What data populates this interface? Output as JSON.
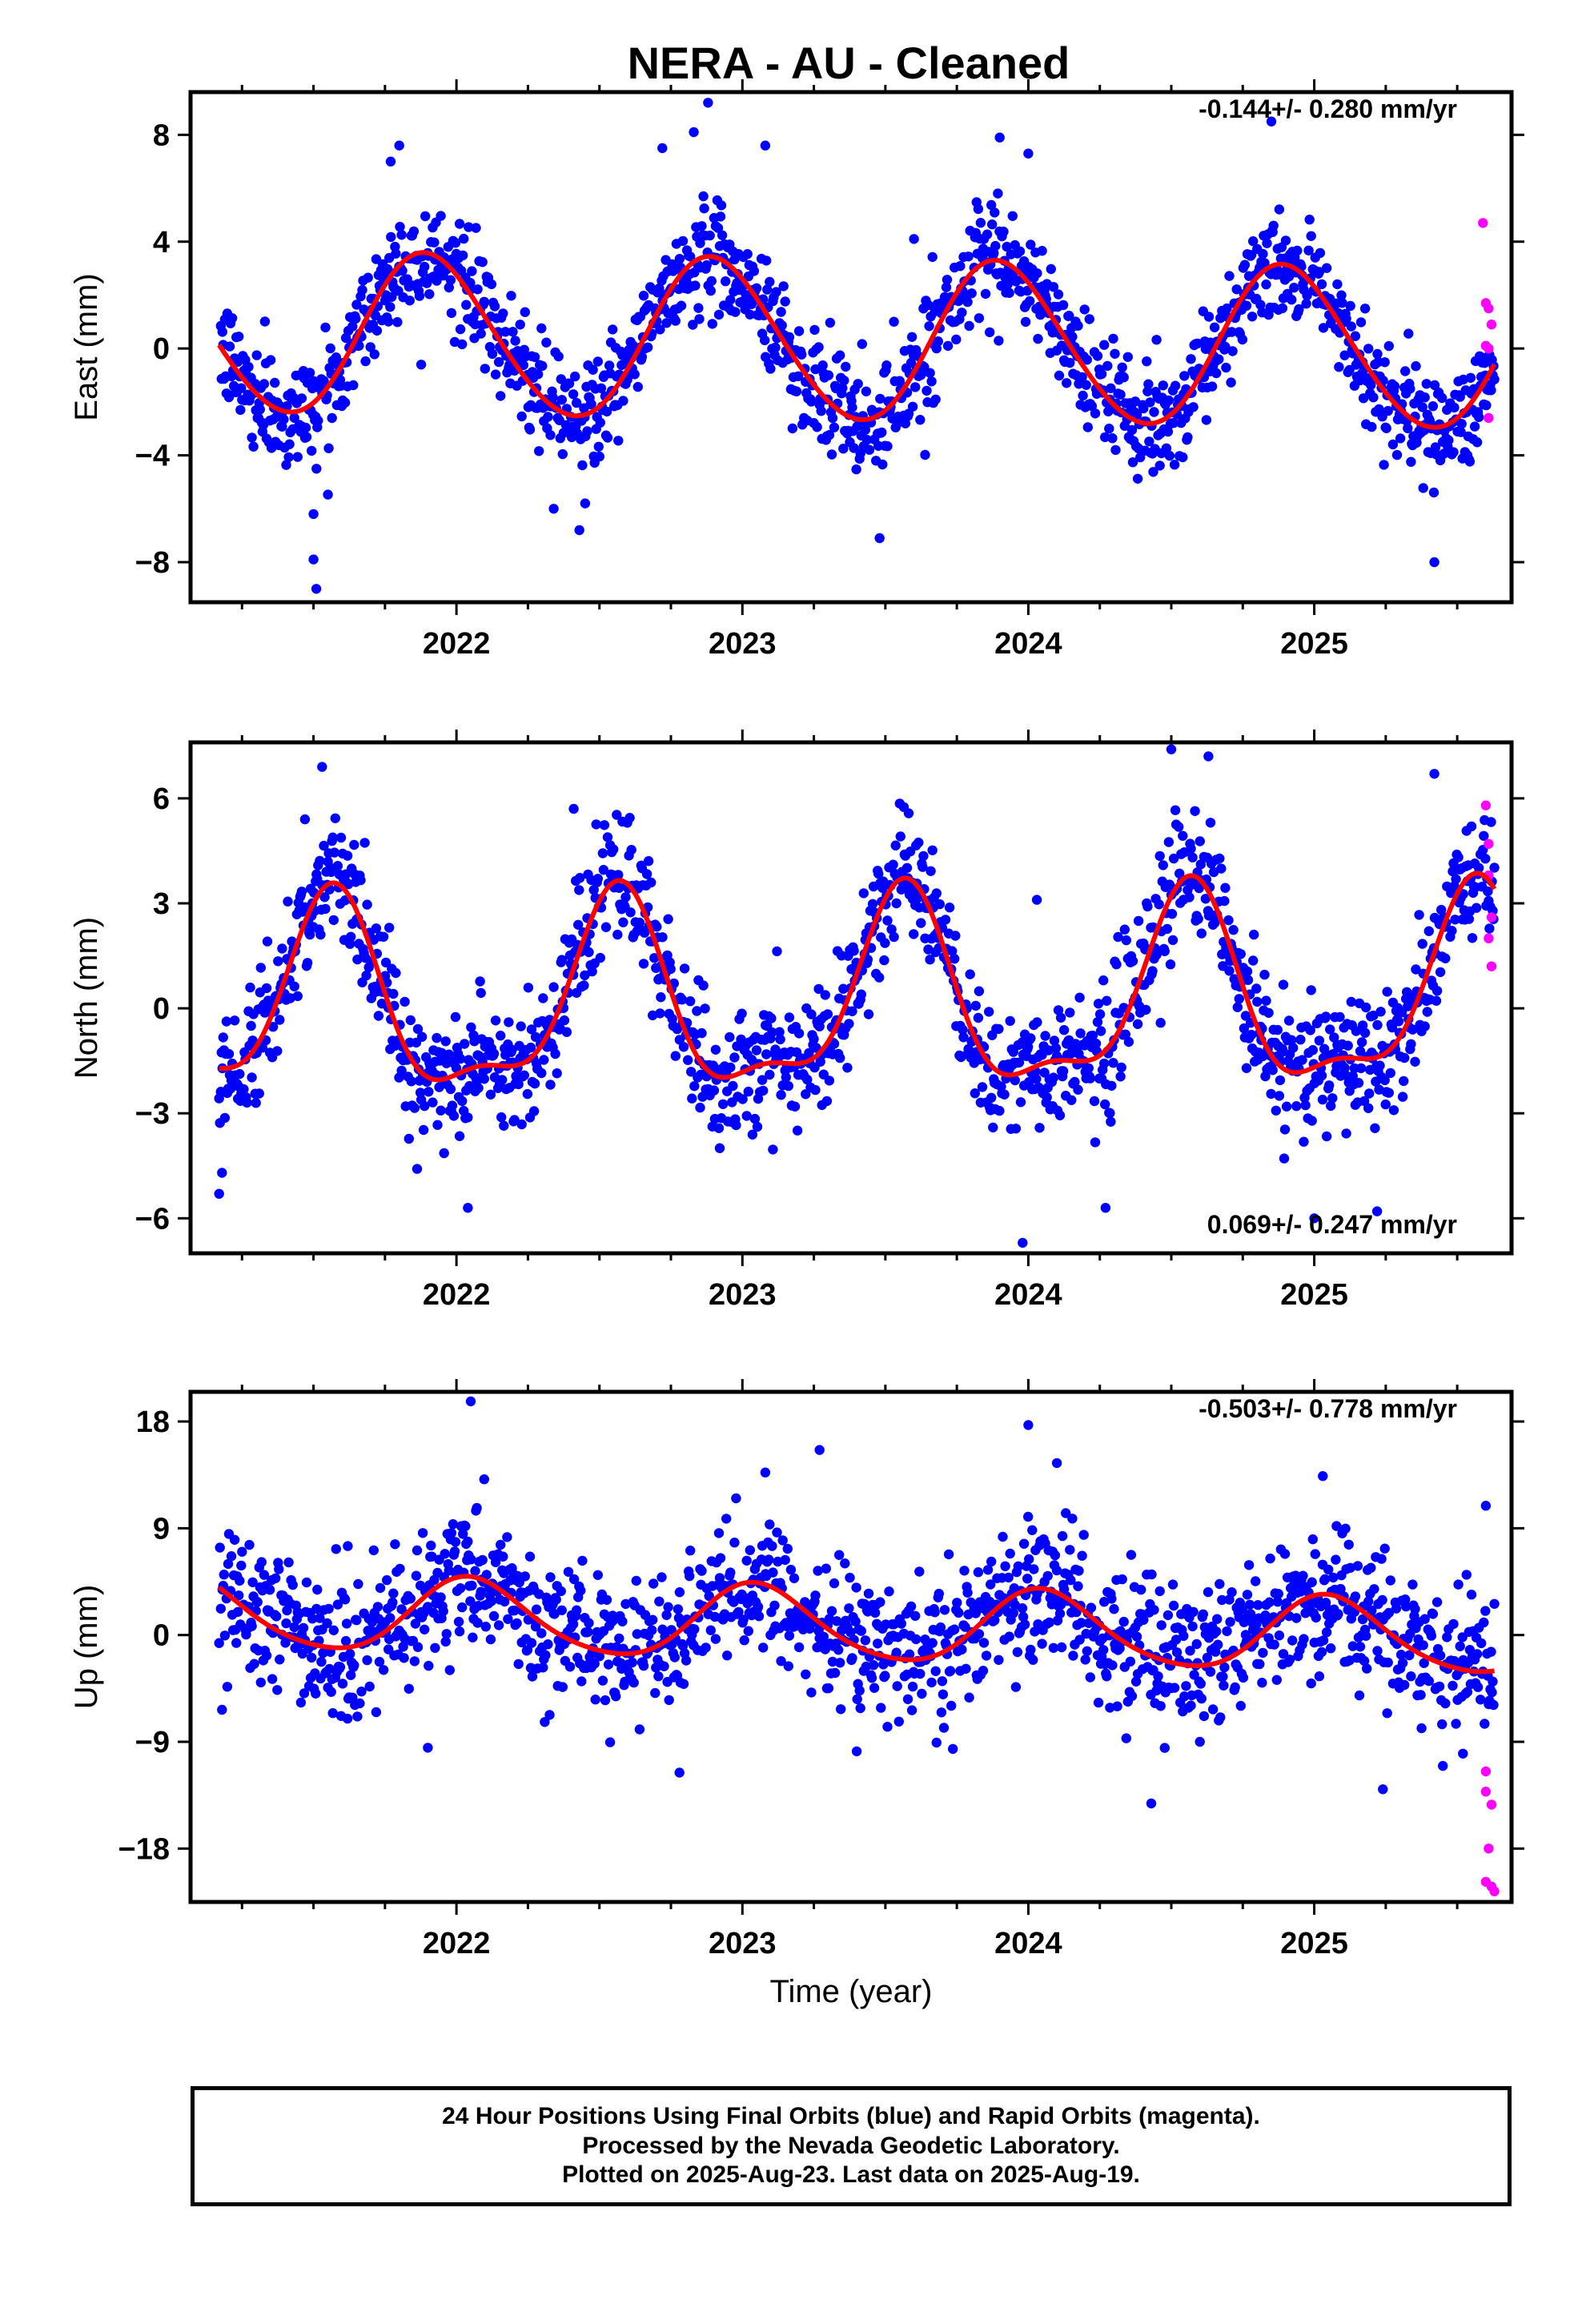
{
  "title": "NERA  - AU - Cleaned",
  "colors": {
    "final_orbits": "#0000ff",
    "rapid_orbits": "#ff00ff",
    "model_fit": "#ff0000",
    "axes": "#000000"
  },
  "chart_data": [
    {
      "type": "scatter",
      "component": "east",
      "ylabel": "East (mm)",
      "rate_label": "-0.144+/- 0.280 mm/yr",
      "xlim": [
        2021.07,
        2025.69
      ],
      "ylim": [
        -9.5,
        9.6
      ],
      "yticks": [
        -8,
        -4,
        0,
        4,
        8
      ],
      "yticklabels": [
        "−8",
        "−4",
        "0",
        "4",
        "8"
      ],
      "xticks": [
        2022,
        2023,
        2024,
        2025
      ],
      "xticklabels": [
        "2022",
        "2023",
        "2024",
        "2025"
      ],
      "data_range": [
        2021.17,
        2025.63
      ],
      "model": {
        "offset": 0.25,
        "trend_mm_per_yr": -0.144,
        "annual_amp": 3.0,
        "annual_peak": 2021.9,
        "semiannual_amp": 0.2,
        "semiannual_phase": 1.0,
        "noise_sd": 1.0
      },
      "rapid_points": [
        [
          2025.59,
          4.7
        ],
        [
          2025.6,
          1.7
        ],
        [
          2025.61,
          1.5
        ],
        [
          2025.6,
          0.1
        ],
        [
          2025.61,
          0.0
        ],
        [
          2025.62,
          0.9
        ],
        [
          2025.61,
          -2.6
        ]
      ],
      "outliers": [
        [
          2021.5,
          -6.2
        ],
        [
          2021.5,
          -7.9
        ],
        [
          2021.51,
          -9.0
        ],
        [
          2022.43,
          -6.8
        ],
        [
          2022.34,
          -6.0
        ],
        [
          2022.45,
          -5.8
        ],
        [
          2022.88,
          9.2
        ],
        [
          2022.72,
          7.5
        ],
        [
          2023.08,
          7.6
        ],
        [
          2023.48,
          -7.1
        ],
        [
          2023.9,
          7.9
        ],
        [
          2024.0,
          7.3
        ],
        [
          2022.83,
          8.1
        ],
        [
          2025.42,
          -8.0
        ],
        [
          2021.8,
          7.6
        ],
        [
          2024.85,
          8.5
        ],
        [
          2021.77,
          7.0
        ],
        [
          2023.6,
          4.1
        ]
      ]
    },
    {
      "type": "scatter",
      "component": "north",
      "ylabel": "North (mm)",
      "rate_label": "0.069+/- 0.247 mm/yr",
      "xlim": [
        2021.07,
        2025.69
      ],
      "ylim": [
        -7.0,
        7.6
      ],
      "yticks": [
        -6,
        -3,
        0,
        3,
        6
      ],
      "yticklabels": [
        "−6",
        "−3",
        "0",
        "3",
        "6"
      ],
      "xticks": [
        2022,
        2023,
        2024,
        2025
      ],
      "xticklabels": [
        "2022",
        "2023",
        "2024",
        "2025"
      ],
      "data_range": [
        2021.17,
        2025.63
      ],
      "model": {
        "offset": 0.12,
        "trend_mm_per_yr": 0.069,
        "annual_amp": 2.65,
        "annual_peak": 2021.56,
        "semiannual_amp": 0.95,
        "semiannual_phase": -0.2,
        "noise_sd": 0.9
      },
      "rapid_points": [
        [
          2025.6,
          5.8
        ],
        [
          2025.61,
          4.7
        ],
        [
          2025.61,
          3.8
        ],
        [
          2025.62,
          2.6
        ],
        [
          2025.61,
          2.0
        ],
        [
          2025.62,
          1.2
        ]
      ],
      "outliers": [
        [
          2021.53,
          6.9
        ],
        [
          2021.17,
          -5.3
        ],
        [
          2021.18,
          -4.7
        ],
        [
          2022.04,
          -5.7
        ],
        [
          2023.98,
          -6.7
        ],
        [
          2024.27,
          -5.7
        ],
        [
          2024.5,
          7.4
        ],
        [
          2024.63,
          7.2
        ],
        [
          2025.22,
          -5.8
        ],
        [
          2025.42,
          6.7
        ],
        [
          2025.0,
          -6.0
        ],
        [
          2022.41,
          5.7
        ],
        [
          2024.03,
          3.1
        ],
        [
          2021.47,
          5.4
        ]
      ]
    },
    {
      "type": "scatter",
      "component": "up",
      "ylabel": "Up (mm)",
      "rate_label": "-0.503+/- 0.778 mm/yr",
      "xlabel": "Time (year)",
      "xlim": [
        2021.07,
        2025.69
      ],
      "ylim": [
        -22.5,
        20.5
      ],
      "yticks": [
        -18,
        -9,
        0,
        9,
        18
      ],
      "yticklabels": [
        "−18",
        "−9",
        "0",
        "9",
        "18"
      ],
      "xticks": [
        2022,
        2023,
        2024,
        2025
      ],
      "xticklabels": [
        "2022",
        "2023",
        "2024",
        "2025"
      ],
      "data_range": [
        2021.17,
        2025.63
      ],
      "model": {
        "offset": 0.8,
        "trend_mm_per_yr": -0.503,
        "annual_amp": 3.1,
        "annual_peak": 2022.05,
        "semiannual_amp": 0.4,
        "semiannual_phase": 0.5,
        "noise_sd": 2.9
      },
      "rapid_points": [
        [
          2025.6,
          -11.5
        ],
        [
          2025.6,
          -13.2
        ],
        [
          2025.62,
          -14.3
        ],
        [
          2025.61,
          -18.0
        ],
        [
          2025.6,
          -20.8
        ],
        [
          2025.62,
          -21.2
        ],
        [
          2025.63,
          -21.6
        ]
      ],
      "outliers": [
        [
          2022.05,
          19.7
        ],
        [
          2023.27,
          15.6
        ],
        [
          2024.0,
          17.7
        ],
        [
          2024.43,
          -14.2
        ],
        [
          2025.24,
          -13.0
        ],
        [
          2022.78,
          -11.6
        ],
        [
          2021.18,
          -6.3
        ],
        [
          2021.9,
          -9.5
        ],
        [
          2023.4,
          -9.8
        ],
        [
          2024.6,
          -9.0
        ],
        [
          2025.52,
          -10.0
        ],
        [
          2025.6,
          10.9
        ],
        [
          2021.62,
          7.5
        ],
        [
          2023.08,
          13.7
        ],
        [
          2024.1,
          14.5
        ],
        [
          2025.03,
          13.4
        ]
      ]
    }
  ],
  "footer": {
    "line1": "24 Hour Positions Using Final Orbits (blue) and Rapid Orbits (magenta).",
    "line2": "Processed by the Nevada Geodetic Laboratory.",
    "line3": "Plotted on 2025-Aug-23. Last data on 2025-Aug-19."
  }
}
